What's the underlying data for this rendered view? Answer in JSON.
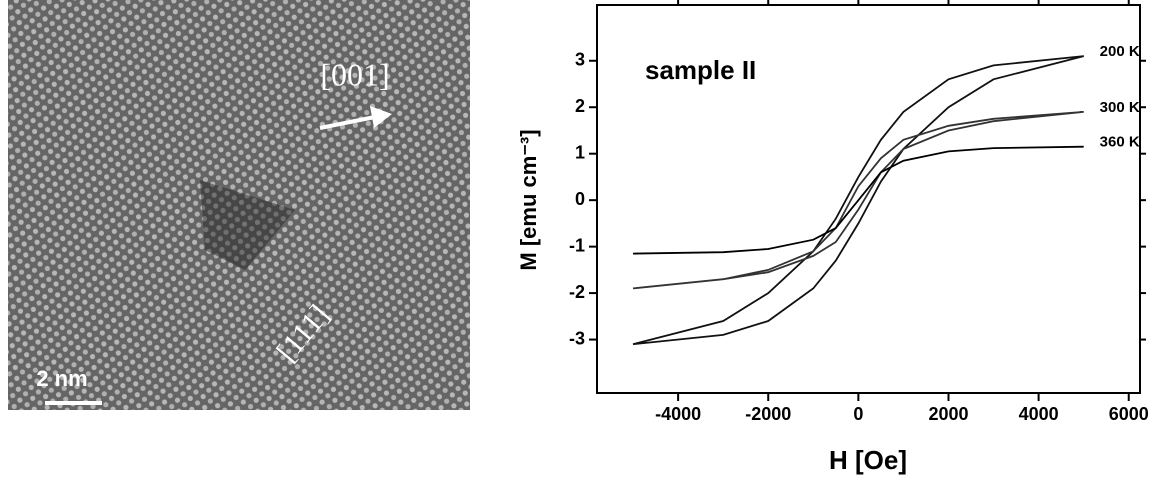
{
  "image": {
    "labels": [
      "[001]",
      "[111]",
      "2 nm"
    ]
  },
  "chart_data": {
    "type": "line",
    "annotation": "sample II",
    "xlabel": "H [Oe]",
    "ylabel": "M [emu cm⁻³]",
    "xlim": [
      -5800,
      6250
    ],
    "ylim": [
      -4.15,
      4.2
    ],
    "xticks": [
      -4000,
      -2000,
      0,
      2000,
      4000,
      6000
    ],
    "yticks": [
      -3,
      -2,
      -1,
      0,
      1,
      2,
      3
    ],
    "grid": false,
    "series": [
      {
        "name": "200 K",
        "color": "#111111",
        "x": [
          -5000,
          -3000,
          -2000,
          -1000,
          -500,
          0,
          500,
          1000,
          2000,
          3000,
          5000,
          3000,
          2000,
          1000,
          500,
          0,
          -500,
          -1000,
          -2000,
          -3000,
          -5000
        ],
        "values": [
          -3.1,
          -2.9,
          -2.6,
          -1.9,
          -1.3,
          -0.5,
          0.4,
          1.1,
          2.0,
          2.6,
          3.1,
          2.9,
          2.6,
          1.9,
          1.3,
          0.5,
          -0.4,
          -1.1,
          -2.0,
          -2.6,
          -3.1
        ]
      },
      {
        "name": "300 K",
        "color": "#333333",
        "x": [
          -5000,
          -3000,
          -2000,
          -1000,
          -500,
          0,
          500,
          1000,
          2000,
          3000,
          5000,
          3000,
          2000,
          1000,
          500,
          0,
          -500,
          -1000,
          -2000,
          -3000,
          -5000
        ],
        "values": [
          -1.9,
          -1.7,
          -1.55,
          -1.2,
          -0.9,
          -0.2,
          0.6,
          1.1,
          1.5,
          1.7,
          1.9,
          1.75,
          1.6,
          1.3,
          0.9,
          0.3,
          -0.6,
          -1.1,
          -1.5,
          -1.7,
          -1.9
        ]
      },
      {
        "name": "360 K",
        "color": "#000000",
        "x": [
          -5000,
          -3000,
          -2000,
          -1000,
          -500,
          0,
          500,
          1000,
          2000,
          3000,
          5000
        ],
        "values": [
          -1.15,
          -1.12,
          -1.05,
          -0.85,
          -0.6,
          0,
          0.6,
          0.85,
          1.05,
          1.12,
          1.15
        ]
      }
    ]
  }
}
